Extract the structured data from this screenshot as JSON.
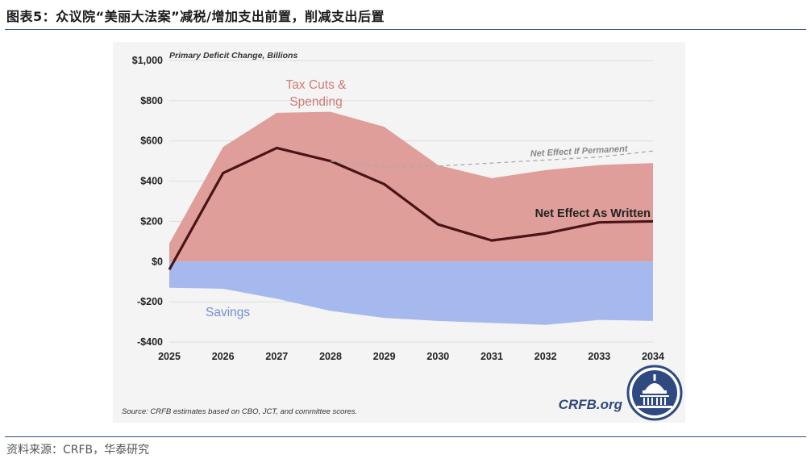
{
  "page": {
    "title": "图表5：众议院“美丽大法案”减税/增加支出前置，削减支出后置",
    "source": "资料来源：CRFB，华泰研究"
  },
  "chart_data": {
    "type": "area",
    "subtitle": "Primary Deficit Change, Billions",
    "x": [
      2025,
      2026,
      2027,
      2028,
      2029,
      2030,
      2031,
      2032,
      2033,
      2034
    ],
    "x_tick_labels": [
      "2025",
      "2026",
      "2027",
      "2028",
      "2029",
      "2030",
      "2031",
      "2032",
      "2033",
      "2034"
    ],
    "ylim": [
      -400,
      1000
    ],
    "y_ticks": [
      1000,
      800,
      600,
      400,
      200,
      0,
      -200,
      -400
    ],
    "y_tick_labels": [
      "$1,000",
      "$800",
      "$600",
      "$400",
      "$200",
      "$0",
      "-$200",
      "-$400"
    ],
    "grid": true,
    "series": [
      {
        "name": "Tax Cuts & Spending",
        "kind": "area",
        "color": "#df9e9a",
        "values": [
          90,
          570,
          740,
          745,
          670,
          480,
          415,
          455,
          480,
          490
        ]
      },
      {
        "name": "Savings",
        "kind": "area",
        "color": "#a6b9ee",
        "values": [
          -130,
          -135,
          -185,
          -245,
          -280,
          -295,
          -305,
          -315,
          -290,
          -295
        ]
      },
      {
        "name": "Net Effect As Written",
        "kind": "line",
        "color": "#4a1416",
        "values": [
          -40,
          440,
          565,
          500,
          385,
          185,
          105,
          140,
          195,
          200
        ]
      },
      {
        "name": "Net Effect If Permanent",
        "kind": "dashed-line",
        "color": "#aaaaaa",
        "x": [
          2028,
          2029,
          2030,
          2031,
          2032,
          2033,
          2034
        ],
        "values": [
          500,
          470,
          475,
          490,
          505,
          520,
          550
        ]
      }
    ],
    "labels": {
      "tax_cuts_line1": "Tax Cuts &",
      "tax_cuts_line2": "Spending",
      "savings": "Savings",
      "net_written": "Net Effect As Written",
      "net_permanent": "Net Effect If Permanent"
    },
    "note": "Source: CRFB estimates based on CBO, JCT, and committee scores.",
    "brand": "CRFB.org"
  },
  "colors": {
    "card_background": "#f4f4f4",
    "grid": "#dddddd",
    "rule": "#2f4e7a",
    "logo_fill": "#2e4a80"
  },
  "icons": {
    "logo": "capitol-dome-icon"
  }
}
